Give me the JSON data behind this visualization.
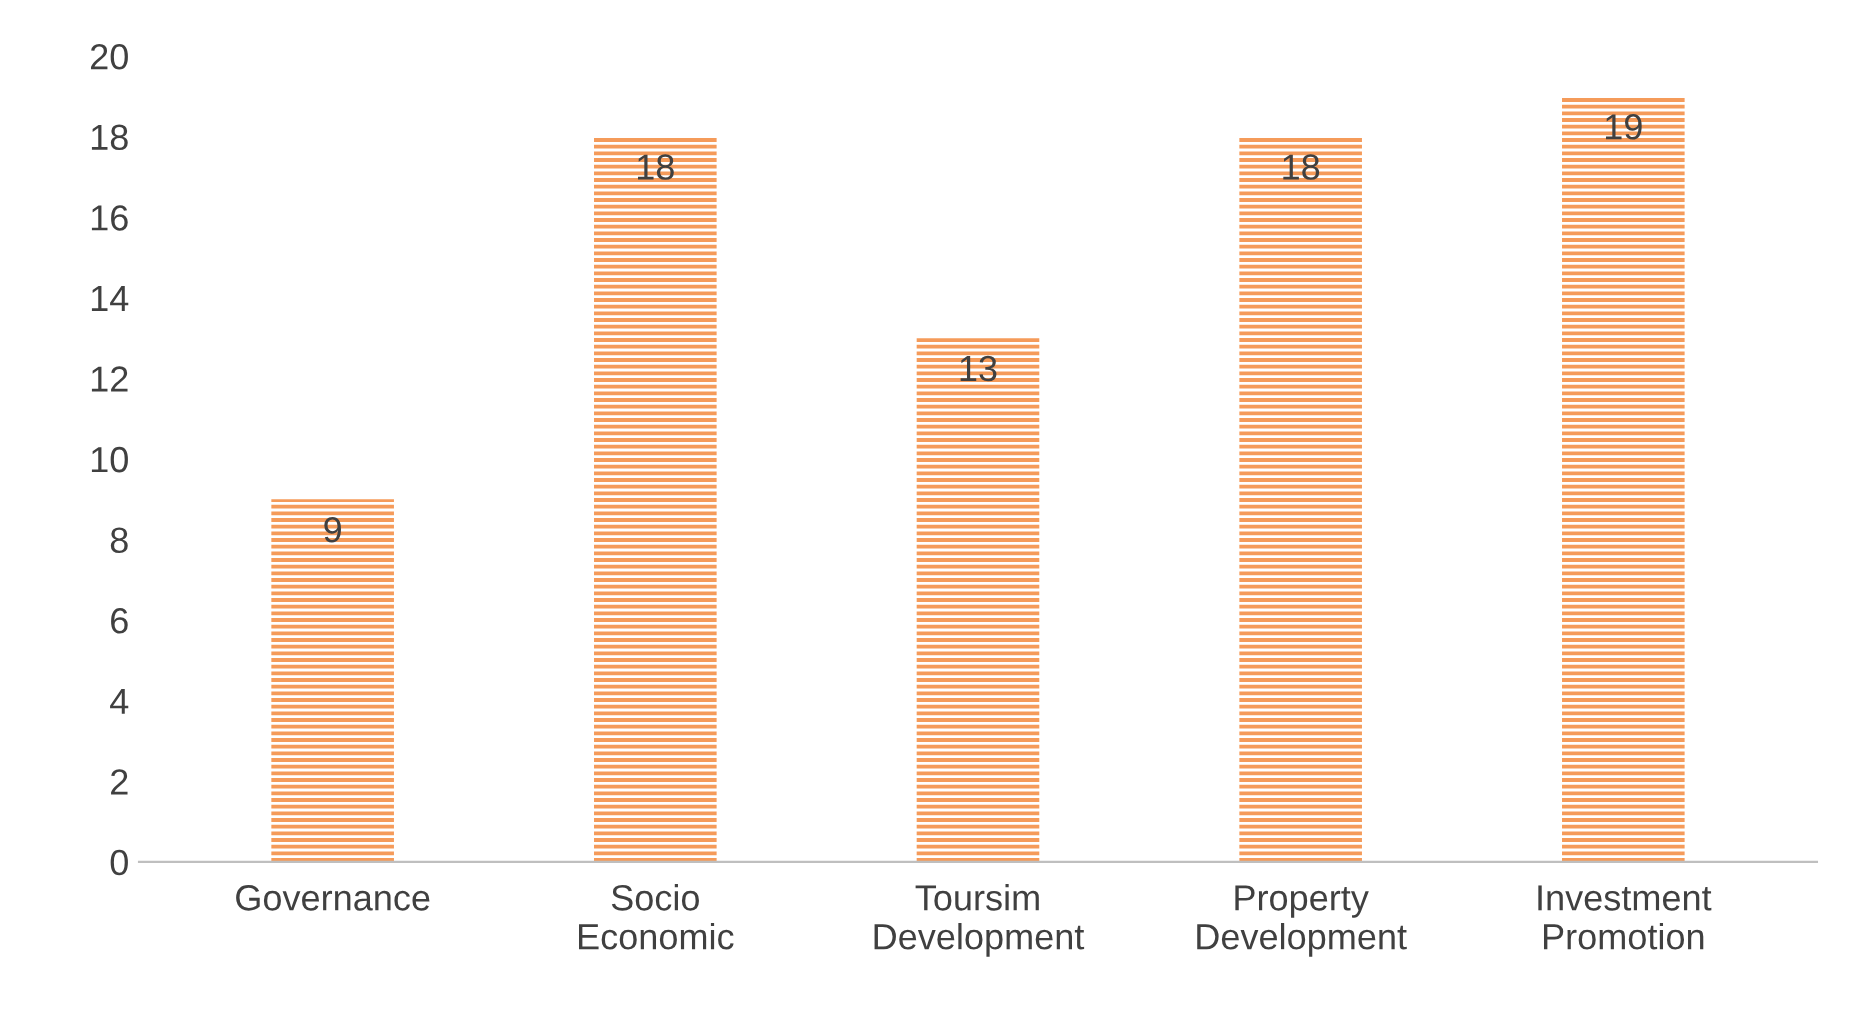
{
  "chart_data": {
    "type": "bar",
    "categories": [
      "Governance",
      "Socio\nEconomic",
      "Toursim\nDevelopment",
      "Property\nDevelopment",
      "Investment\nPromotion"
    ],
    "values": [
      9,
      18,
      13,
      18,
      19
    ],
    "color": "#f59b5a",
    "ylim": [
      0,
      20
    ],
    "yticks": [
      0,
      2,
      4,
      6,
      8,
      10,
      12,
      14,
      16,
      18,
      20
    ],
    "grid": false,
    "data_labels": true
  }
}
